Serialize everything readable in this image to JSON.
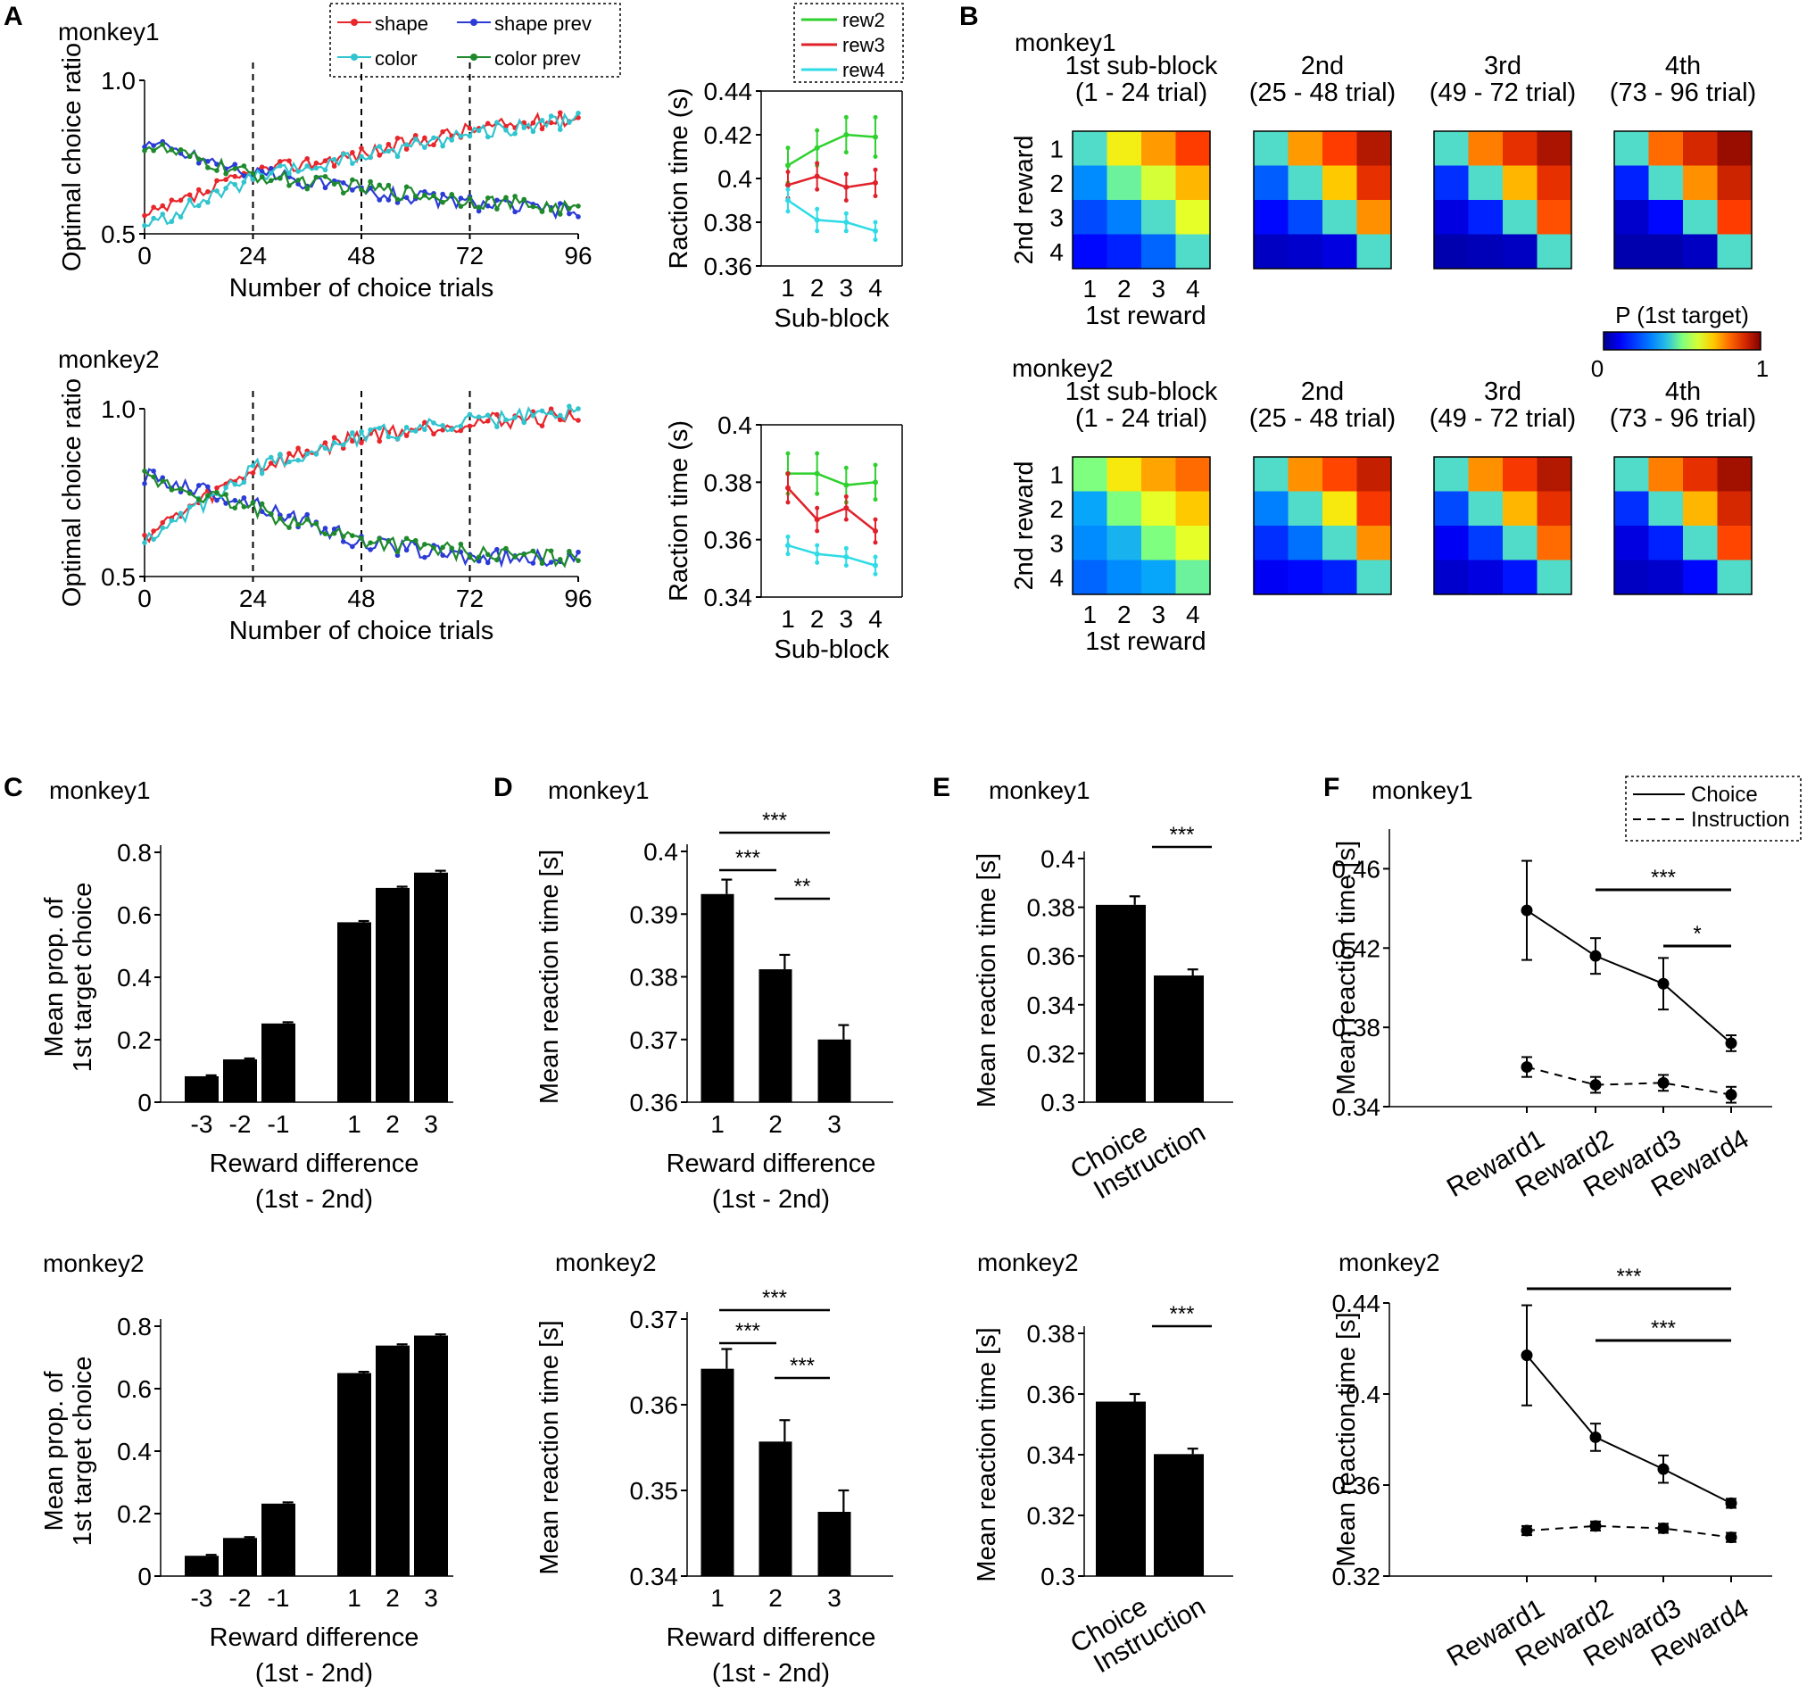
{
  "panel_letters": [
    "A",
    "B",
    "C",
    "D",
    "E",
    "F"
  ],
  "chart_data": [
    {
      "id": "A1",
      "type": "line",
      "subject": "monkey1",
      "ylabel": "Optimal choice ratio",
      "xlabel": "Number of choice trials",
      "xlim": [
        0,
        96
      ],
      "ylim": [
        0.5,
        1.0
      ],
      "xticks": [
        "0",
        "24",
        "48",
        "72",
        "96"
      ],
      "yticks": [
        "0.5",
        "1.0"
      ],
      "dashed_x": [
        24,
        48,
        72
      ],
      "series": [
        {
          "name": "shape",
          "color": "#e8262b",
          "trend": [
            0.55,
            0.7,
            0.76,
            0.84,
            0.88
          ]
        },
        {
          "name": "shape prev",
          "color": "#2b3bd6",
          "trend": [
            0.8,
            0.7,
            0.64,
            0.6,
            0.57
          ]
        },
        {
          "name": "color",
          "color": "#30c4cf",
          "trend": [
            0.52,
            0.68,
            0.75,
            0.83,
            0.87
          ]
        },
        {
          "name": "color prev",
          "color": "#1f8a2c",
          "trend": [
            0.79,
            0.69,
            0.65,
            0.61,
            0.58
          ]
        }
      ]
    },
    {
      "id": "A2",
      "type": "line",
      "subject": "monkey1",
      "ylabel": "Raction time (s)",
      "xlabel": "Sub-block",
      "categories": [
        "1",
        "2",
        "3",
        "4"
      ],
      "ylim": [
        0.36,
        0.44
      ],
      "yticks": [
        "0.36",
        "0.38",
        "0.4",
        "0.42",
        "0.44"
      ],
      "series": [
        {
          "name": "rew2",
          "color": "#2ed12e",
          "values": [
            0.406,
            0.414,
            0.42,
            0.419
          ],
          "err": [
            0.008,
            0.008,
            0.008,
            0.009
          ]
        },
        {
          "name": "rew3",
          "color": "#e0202a",
          "values": [
            0.397,
            0.401,
            0.396,
            0.398
          ],
          "err": [
            0.006,
            0.006,
            0.006,
            0.006
          ]
        },
        {
          "name": "rew4",
          "color": "#2edbe6",
          "values": [
            0.39,
            0.381,
            0.38,
            0.376
          ],
          "err": [
            0.005,
            0.005,
            0.004,
            0.004
          ]
        }
      ]
    },
    {
      "id": "A3",
      "type": "line",
      "subject": "monkey2",
      "ylabel": "Optimal choice ratio",
      "xlabel": "Number of choice trials",
      "xlim": [
        0,
        96
      ],
      "ylim": [
        0.5,
        1.0
      ],
      "xticks": [
        "0",
        "24",
        "48",
        "72",
        "96"
      ],
      "yticks": [
        "0.5",
        "1.0"
      ],
      "dashed_x": [
        24,
        48,
        72
      ],
      "series": [
        {
          "name": "shape",
          "color": "#e8262b",
          "trend": [
            0.62,
            0.82,
            0.92,
            0.96,
            0.98
          ]
        },
        {
          "name": "shape prev",
          "color": "#2b3bd6",
          "trend": [
            0.8,
            0.72,
            0.6,
            0.56,
            0.55
          ]
        },
        {
          "name": "color",
          "color": "#30c4cf",
          "trend": [
            0.6,
            0.82,
            0.92,
            0.96,
            0.99
          ]
        },
        {
          "name": "color prev",
          "color": "#1f8a2c",
          "trend": [
            0.79,
            0.7,
            0.61,
            0.57,
            0.55
          ]
        }
      ]
    },
    {
      "id": "A4",
      "type": "line",
      "subject": "monkey2",
      "ylabel": "Raction time (s)",
      "xlabel": "Sub-block",
      "categories": [
        "1",
        "2",
        "3",
        "4"
      ],
      "ylim": [
        0.34,
        0.4
      ],
      "yticks": [
        "0.34",
        "0.36",
        "0.38",
        "0.4"
      ],
      "series": [
        {
          "name": "rew2",
          "color": "#2ed12e",
          "values": [
            0.383,
            0.383,
            0.379,
            0.38
          ],
          "err": [
            0.007,
            0.007,
            0.006,
            0.006
          ]
        },
        {
          "name": "rew3",
          "color": "#e0202a",
          "values": [
            0.378,
            0.367,
            0.371,
            0.363
          ],
          "err": [
            0.005,
            0.004,
            0.004,
            0.004
          ]
        },
        {
          "name": "rew4",
          "color": "#2edbe6",
          "values": [
            0.358,
            0.355,
            0.354,
            0.351
          ],
          "err": [
            0.003,
            0.003,
            0.003,
            0.003
          ]
        }
      ]
    },
    {
      "id": "B1",
      "type": "heatmap",
      "subject": "monkey1",
      "colorbar_label": "P (1st target)",
      "colorbar_range": [
        "0",
        "1"
      ],
      "ylabel": "2nd reward",
      "xlabel": "1st reward",
      "ticks": [
        "1",
        "2",
        "3",
        "4"
      ],
      "blocks": [
        {
          "title": "1st sub-block",
          "subtitle": "(1 - 24 trial)",
          "matrix": [
            [
              0.45,
              0.65,
              0.75,
              0.85
            ],
            [
              0.32,
              0.48,
              0.6,
              0.72
            ],
            [
              0.22,
              0.3,
              0.45,
              0.62
            ],
            [
              0.12,
              0.16,
              0.26,
              0.45
            ]
          ]
        },
        {
          "title": "2nd",
          "subtitle": "(25 - 48 trial)",
          "matrix": [
            [
              0.45,
              0.75,
              0.85,
              0.94
            ],
            [
              0.25,
              0.45,
              0.7,
              0.88
            ],
            [
              0.12,
              0.22,
              0.45,
              0.76
            ],
            [
              0.05,
              0.06,
              0.08,
              0.45
            ]
          ]
        },
        {
          "title": "3rd",
          "subtitle": "(49 - 72 trial)",
          "matrix": [
            [
              0.45,
              0.78,
              0.88,
              0.95
            ],
            [
              0.18,
              0.45,
              0.72,
              0.88
            ],
            [
              0.08,
              0.16,
              0.45,
              0.83
            ],
            [
              0.03,
              0.04,
              0.05,
              0.45
            ]
          ]
        },
        {
          "title": "4th",
          "subtitle": "(73 - 96 trial)",
          "matrix": [
            [
              0.45,
              0.8,
              0.9,
              0.97
            ],
            [
              0.16,
              0.45,
              0.76,
              0.91
            ],
            [
              0.06,
              0.12,
              0.45,
              0.85
            ],
            [
              0.03,
              0.03,
              0.05,
              0.45
            ]
          ]
        }
      ]
    },
    {
      "id": "B2",
      "type": "heatmap",
      "subject": "monkey2",
      "ylabel": "2nd reward",
      "xlabel": "1st reward",
      "ticks": [
        "1",
        "2",
        "3",
        "4"
      ],
      "blocks": [
        {
          "title": "1st sub-block",
          "subtitle": "(1 - 24 trial)",
          "matrix": [
            [
              0.5,
              0.66,
              0.74,
              0.8
            ],
            [
              0.36,
              0.5,
              0.62,
              0.7
            ],
            [
              0.32,
              0.38,
              0.5,
              0.62
            ],
            [
              0.26,
              0.32,
              0.36,
              0.48
            ]
          ]
        },
        {
          "title": "2nd",
          "subtitle": "(25 - 48 trial)",
          "matrix": [
            [
              0.45,
              0.76,
              0.84,
              0.92
            ],
            [
              0.3,
              0.45,
              0.66,
              0.86
            ],
            [
              0.18,
              0.28,
              0.45,
              0.76
            ],
            [
              0.1,
              0.12,
              0.16,
              0.45
            ]
          ]
        },
        {
          "title": "3rd",
          "subtitle": "(49 - 72 trial)",
          "matrix": [
            [
              0.45,
              0.76,
              0.86,
              0.94
            ],
            [
              0.22,
              0.45,
              0.72,
              0.88
            ],
            [
              0.1,
              0.2,
              0.45,
              0.8
            ],
            [
              0.06,
              0.08,
              0.14,
              0.45
            ]
          ]
        },
        {
          "title": "4th",
          "subtitle": "(73 - 96 trial)",
          "matrix": [
            [
              0.45,
              0.78,
              0.88,
              0.96
            ],
            [
              0.18,
              0.45,
              0.72,
              0.9
            ],
            [
              0.08,
              0.16,
              0.45,
              0.84
            ],
            [
              0.05,
              0.06,
              0.12,
              0.45
            ]
          ]
        }
      ]
    },
    {
      "id": "C1",
      "type": "bar",
      "subject": "monkey1",
      "ylabel": [
        "Mean prop. of",
        "1st target choice"
      ],
      "xlabel": [
        "Reward difference",
        "(1st - 2nd)"
      ],
      "categories": [
        "-3",
        "-2",
        "-1",
        "1",
        "2",
        "3"
      ],
      "values": [
        0.083,
        0.137,
        0.252,
        0.576,
        0.686,
        0.735
      ],
      "err": [
        0.003,
        0.003,
        0.004,
        0.004,
        0.004,
        0.006
      ],
      "ylim": [
        0,
        0.8
      ],
      "yticks": [
        "0",
        "0.2",
        "0.4",
        "0.6",
        "0.8"
      ]
    },
    {
      "id": "C2",
      "type": "bar",
      "subject": "monkey2",
      "ylabel": [
        "Mean prop. of",
        "1st target choice"
      ],
      "xlabel": [
        "Reward difference",
        "(1st - 2nd)"
      ],
      "categories": [
        "-3",
        "-2",
        "-1",
        "1",
        "2",
        "3"
      ],
      "values": [
        0.065,
        0.122,
        0.232,
        0.65,
        0.738,
        0.77
      ],
      "err": [
        0.003,
        0.003,
        0.004,
        0.004,
        0.004,
        0.004
      ],
      "ylim": [
        0,
        0.8
      ],
      "yticks": [
        "0",
        "0.2",
        "0.4",
        "0.6",
        "0.8"
      ]
    },
    {
      "id": "D1",
      "type": "bar",
      "subject": "monkey1",
      "ylabel": "Mean reaction time [s]",
      "xlabel": [
        "Reward difference",
        "(1st - 2nd)"
      ],
      "categories": [
        "1",
        "2",
        "3"
      ],
      "values": [
        0.3932,
        0.3812,
        0.37
      ],
      "err": [
        0.0023,
        0.0023,
        0.0023
      ],
      "ylim": [
        0.36,
        0.4
      ],
      "yticks": [
        "0.36",
        "0.37",
        "0.38",
        "0.39",
        "0.4"
      ],
      "significance": [
        {
          "from": 0,
          "to": 2,
          "label": "***"
        },
        {
          "from": 0,
          "to": 1,
          "label": "***"
        },
        {
          "from": 1,
          "to": 2,
          "label": "**"
        }
      ]
    },
    {
      "id": "D2",
      "type": "bar",
      "subject": "monkey2",
      "ylabel": "Mean reaction time [s]",
      "xlabel": [
        "Reward difference",
        "(1st - 2nd)"
      ],
      "categories": [
        "1",
        "2",
        "3"
      ],
      "values": [
        0.3642,
        0.3557,
        0.3475
      ],
      "err": [
        0.0023,
        0.0025,
        0.0025
      ],
      "ylim": [
        0.34,
        0.37
      ],
      "yticks": [
        "0.34",
        "0.35",
        "0.36",
        "0.37"
      ],
      "significance": [
        {
          "from": 0,
          "to": 2,
          "label": "***"
        },
        {
          "from": 0,
          "to": 1,
          "label": "***"
        },
        {
          "from": 1,
          "to": 2,
          "label": "***"
        }
      ]
    },
    {
      "id": "E1",
      "type": "bar",
      "subject": "monkey1",
      "ylabel": "Mean reaction time [s]",
      "categories": [
        "Choice",
        "Instruction"
      ],
      "values": [
        0.381,
        0.352
      ],
      "err": [
        0.0035,
        0.0025
      ],
      "ylim": [
        0.3,
        0.4
      ],
      "yticks": [
        "0.3",
        "0.32",
        "0.34",
        "0.36",
        "0.38",
        "0.4"
      ],
      "significance": [
        {
          "from": 0,
          "to": 1,
          "label": "***"
        }
      ]
    },
    {
      "id": "E2",
      "type": "bar",
      "subject": "monkey2",
      "ylabel": "Mean reaction time [s]",
      "categories": [
        "Choice",
        "Instruction"
      ],
      "values": [
        0.3575,
        0.3402
      ],
      "err": [
        0.0025,
        0.0018
      ],
      "ylim": [
        0.3,
        0.38
      ],
      "yticks": [
        "0.3",
        "0.32",
        "0.34",
        "0.36",
        "0.38"
      ],
      "significance": [
        {
          "from": 0,
          "to": 1,
          "label": "***"
        }
      ]
    },
    {
      "id": "F1",
      "type": "line",
      "subject": "monkey1",
      "ylabel": "Mean reaction time [s]",
      "categories": [
        "Reward1",
        "Reward2",
        "Reward3",
        "Reward4"
      ],
      "ylim": [
        0.34,
        0.48
      ],
      "yticks": [
        "0.34",
        "0.38",
        "0.42",
        "0.46"
      ],
      "legend": [
        "Choice",
        "Instruction"
      ],
      "series": [
        {
          "name": "Choice",
          "values": [
            0.439,
            0.416,
            0.402,
            0.372
          ],
          "err": [
            0.025,
            0.009,
            0.013,
            0.004
          ]
        },
        {
          "name": "Instruction",
          "values": [
            0.36,
            0.351,
            0.352,
            0.346
          ],
          "err": [
            0.005,
            0.004,
            0.004,
            0.004
          ]
        }
      ],
      "significance": [
        {
          "from": 1,
          "to": 3,
          "label": "***"
        },
        {
          "from": 2,
          "to": 3,
          "label": "*"
        }
      ]
    },
    {
      "id": "F2",
      "type": "line",
      "subject": "monkey2",
      "ylabel": "Mean reaction time [s]",
      "categories": [
        "Reward1",
        "Reward2",
        "Reward3",
        "Reward4"
      ],
      "ylim": [
        0.32,
        0.44
      ],
      "yticks": [
        "0.32",
        "0.36",
        "0.4",
        "0.44"
      ],
      "series": [
        {
          "name": "Choice",
          "values": [
            0.417,
            0.381,
            0.367,
            0.352
          ],
          "err": [
            0.022,
            0.006,
            0.006,
            0.002
          ]
        },
        {
          "name": "Instruction",
          "values": [
            0.34,
            0.342,
            0.341,
            0.337
          ],
          "err": [
            0.002,
            0.002,
            0.002,
            0.002
          ]
        }
      ],
      "significance": [
        {
          "from": 0,
          "to": 3,
          "label": "***"
        },
        {
          "from": 1,
          "to": 3,
          "label": "***"
        }
      ]
    }
  ]
}
